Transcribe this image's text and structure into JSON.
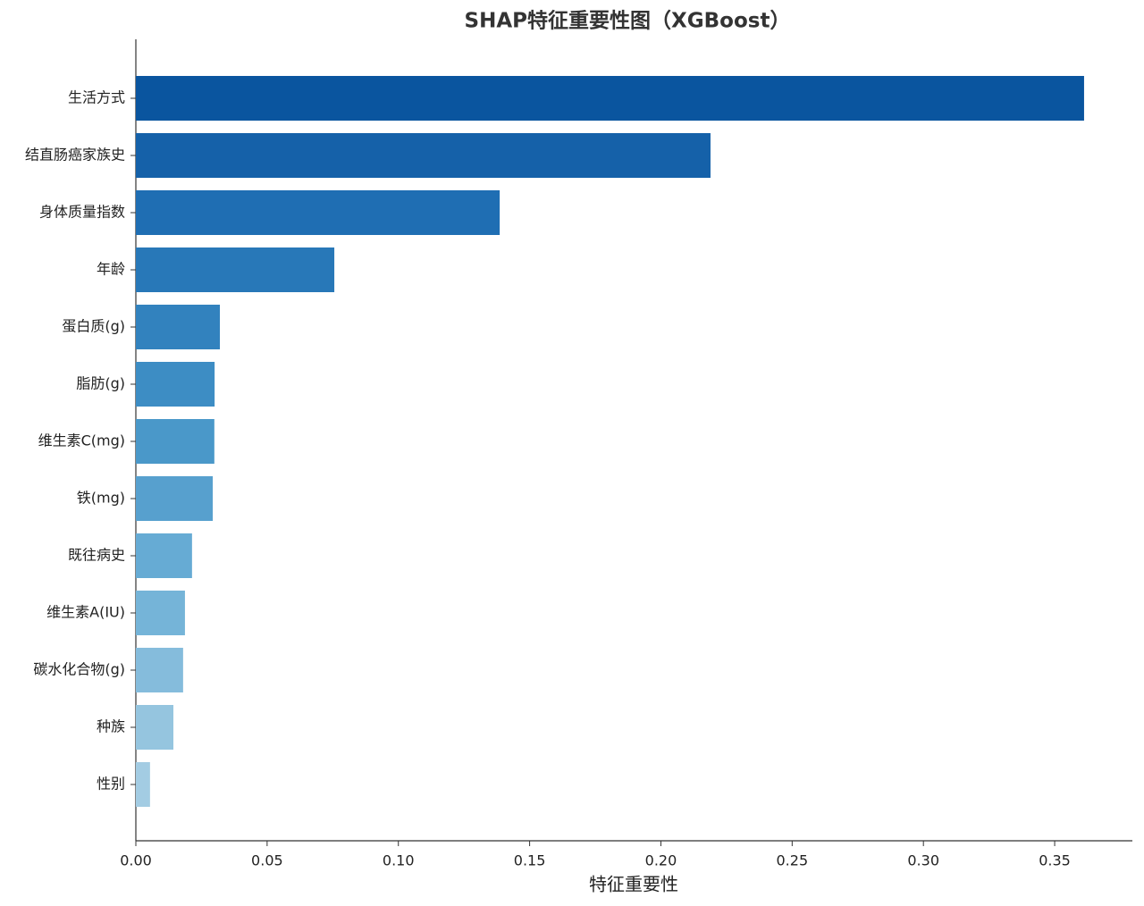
{
  "chart_data": {
    "type": "barh",
    "title": "SHAP特征重要性图（XGBoost）",
    "x_label": "特征重要性",
    "categories": [
      "生活方式",
      "结直肠癌家族史",
      "身体质量指数",
      "年龄",
      "蛋白质(g)",
      "脂肪(g)",
      "维生素C(mg)",
      "铁(mg)",
      "既往病史",
      "维生素A(IU)",
      "碳水化合物(g)",
      "种族",
      "性别"
    ],
    "values": [
      0.3612,
      0.2189,
      0.1386,
      0.0756,
      0.032,
      0.03,
      0.0299,
      0.0293,
      0.0214,
      0.0187,
      0.018,
      0.0143,
      0.0054
    ],
    "colors": [
      "#0a559f",
      "#1561a9",
      "#1f6eb3",
      "#2878b8",
      "#3282be",
      "#3d8dc4",
      "#4a98c9",
      "#57a0ce",
      "#66abd4",
      "#75b4d8",
      "#85bcdc",
      "#95c5df",
      "#a3cce3"
    ],
    "xlim": [
      0,
      0.3796
    ],
    "xticks": [
      {
        "value": 0,
        "label": "0.00"
      },
      {
        "value": 0.05,
        "label": "0.05"
      },
      {
        "value": 0.1,
        "label": "0.10"
      },
      {
        "value": 0.15,
        "label": "0.15"
      },
      {
        "value": 0.2,
        "label": "0.20"
      },
      {
        "value": 0.25,
        "label": "0.25"
      },
      {
        "value": 0.3,
        "label": "0.30"
      },
      {
        "value": 0.35,
        "label": "0.35"
      }
    ],
    "grid": false
  }
}
